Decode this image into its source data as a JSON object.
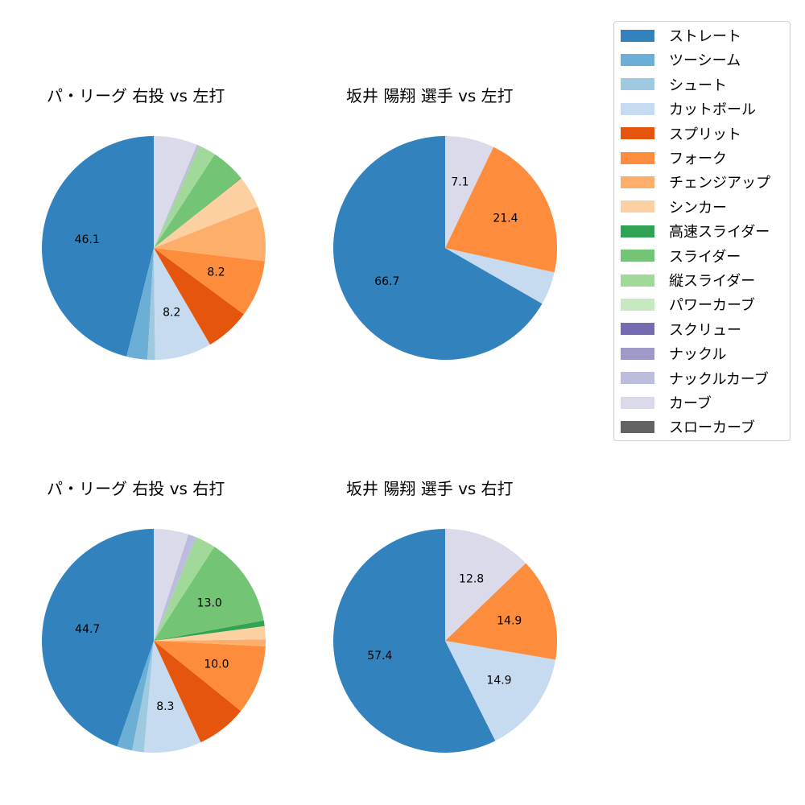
{
  "colors": {
    "ストレート": "#3182bd",
    "ツーシーム": "#6baed6",
    "シュート": "#9ecae1",
    "カットボール": "#c6dbef",
    "スプリット": "#e6550d",
    "フォーク": "#fd8d3c",
    "チェンジアップ": "#fdae6b",
    "シンカー": "#fdd0a2",
    "高速スライダー": "#31a354",
    "スライダー": "#74c476",
    "縦スライダー": "#a1d99b",
    "パワーカーブ": "#c7e9c0",
    "スクリュー": "#756bb1",
    "ナックル": "#9e9ac8",
    "ナックルカーブ": "#bcbddc",
    "カーブ": "#dadaeb",
    "スローカーブ": "#636363"
  },
  "legend": {
    "items": [
      {
        "label": "ストレート",
        "color": "#3182bd"
      },
      {
        "label": "ツーシーム",
        "color": "#6baed6"
      },
      {
        "label": "シュート",
        "color": "#9ecae1"
      },
      {
        "label": "カットボール",
        "color": "#c6dbef"
      },
      {
        "label": "スプリット",
        "color": "#e6550d"
      },
      {
        "label": "フォーク",
        "color": "#fd8d3c"
      },
      {
        "label": "チェンジアップ",
        "color": "#fdae6b"
      },
      {
        "label": "シンカー",
        "color": "#fdd0a2"
      },
      {
        "label": "高速スライダー",
        "color": "#31a354"
      },
      {
        "label": "スライダー",
        "color": "#74c476"
      },
      {
        "label": "縦スライダー",
        "color": "#a1d99b"
      },
      {
        "label": "パワーカーブ",
        "color": "#c7e9c0"
      },
      {
        "label": "スクリュー",
        "color": "#756bb1"
      },
      {
        "label": "ナックル",
        "color": "#9e9ac8"
      },
      {
        "label": "ナックルカーブ",
        "color": "#bcbddc"
      },
      {
        "label": "カーブ",
        "color": "#dadaeb"
      },
      {
        "label": "スローカーブ",
        "color": "#636363"
      }
    ]
  },
  "chart_data": [
    {
      "type": "pie",
      "title": "パ・リーグ 右投 vs 左打",
      "start_angle": 90,
      "direction": "counterclockwise",
      "labels_shown_threshold": 8,
      "slices": [
        {
          "label": "ストレート",
          "value": 46.1,
          "shown": "46.1"
        },
        {
          "label": "ツーシーム",
          "value": 3.0
        },
        {
          "label": "シュート",
          "value": 1.1
        },
        {
          "label": "カットボール",
          "value": 8.2,
          "shown": "8.2"
        },
        {
          "label": "スプリット",
          "value": 6.5
        },
        {
          "label": "フォーク",
          "value": 8.2,
          "shown": "8.2"
        },
        {
          "label": "チェンジアップ",
          "value": 7.9
        },
        {
          "label": "シンカー",
          "value": 4.7
        },
        {
          "label": "高速スライダー",
          "value": 0.1
        },
        {
          "label": "スライダー",
          "value": 5.0
        },
        {
          "label": "縦スライダー",
          "value": 2.5
        },
        {
          "label": "ナックルカーブ",
          "value": 0.4
        },
        {
          "label": "カーブ",
          "value": 6.3
        }
      ]
    },
    {
      "type": "pie",
      "title": "坂井 陽翔 選手 vs 左打",
      "start_angle": 90,
      "direction": "counterclockwise",
      "slices": [
        {
          "label": "ストレート",
          "value": 66.7,
          "shown": "66.7"
        },
        {
          "label": "カットボール",
          "value": 4.8
        },
        {
          "label": "フォーク",
          "value": 21.4,
          "shown": "21.4"
        },
        {
          "label": "カーブ",
          "value": 7.1,
          "shown": "7.1"
        }
      ]
    },
    {
      "type": "pie",
      "title": "パ・リーグ 右投 vs 右打",
      "start_angle": 90,
      "direction": "counterclockwise",
      "slices": [
        {
          "label": "ストレート",
          "value": 44.7,
          "shown": "44.7"
        },
        {
          "label": "ツーシーム",
          "value": 2.2
        },
        {
          "label": "シュート",
          "value": 1.7
        },
        {
          "label": "カットボール",
          "value": 8.3,
          "shown": "8.3"
        },
        {
          "label": "スプリット",
          "value": 7.3
        },
        {
          "label": "フォーク",
          "value": 10.0,
          "shown": "10.0"
        },
        {
          "label": "チェンジアップ",
          "value": 1.0
        },
        {
          "label": "シンカー",
          "value": 1.9
        },
        {
          "label": "高速スライダー",
          "value": 0.8
        },
        {
          "label": "スライダー",
          "value": 13.0,
          "shown": "13.0"
        },
        {
          "label": "縦スライダー",
          "value": 2.9
        },
        {
          "label": "ナックルカーブ",
          "value": 1.2
        },
        {
          "label": "カーブ",
          "value": 5.0
        }
      ]
    },
    {
      "type": "pie",
      "title": "坂井 陽翔 選手 vs 右打",
      "start_angle": 90,
      "direction": "counterclockwise",
      "slices": [
        {
          "label": "ストレート",
          "value": 57.4,
          "shown": "57.4"
        },
        {
          "label": "カットボール",
          "value": 14.9,
          "shown": "14.9"
        },
        {
          "label": "フォーク",
          "value": 14.9,
          "shown": "14.9"
        },
        {
          "label": "カーブ",
          "value": 12.8,
          "shown": "12.8"
        }
      ]
    }
  ]
}
